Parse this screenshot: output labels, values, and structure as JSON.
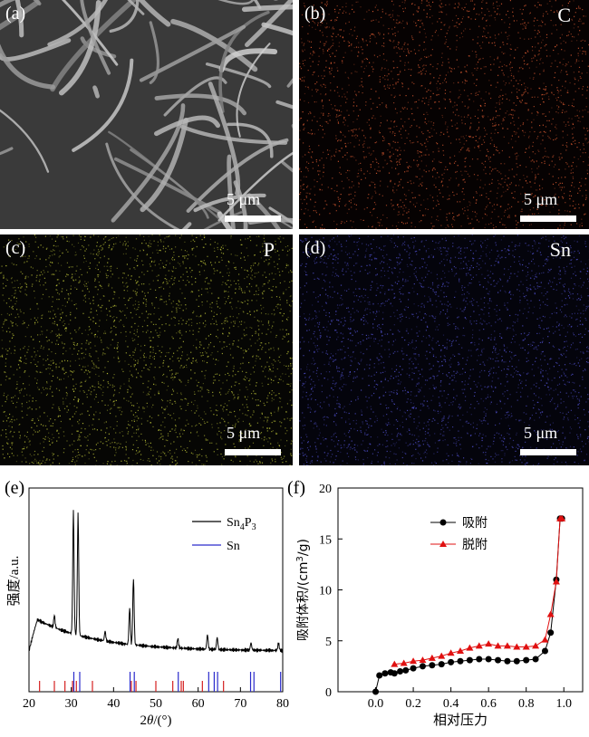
{
  "panels": [
    {
      "label": "(a)",
      "element": "",
      "scale": "5 μm",
      "kind": "sem"
    },
    {
      "label": "(b)",
      "element": "C",
      "scale": "5 μm",
      "kind": "map",
      "dot_color": "#ff6a3a"
    },
    {
      "label": "(c)",
      "element": "P",
      "scale": "5 μm",
      "kind": "map",
      "dot_color": "#d8e040"
    },
    {
      "label": "(d)",
      "element": "Sn",
      "scale": "5 μm",
      "kind": "map",
      "dot_color": "#5a5ae6"
    }
  ],
  "chart_labels": {
    "e": "(e)",
    "f": "(f)"
  },
  "chart_data": [
    {
      "type": "line",
      "ylabel": "强度/a.u.",
      "xlabel_prefix": "2",
      "xlabel_theta": "θ",
      "xlabel_suffix": "/(°)",
      "xlim": [
        20,
        80
      ],
      "xticks": [
        "20",
        "30",
        "40",
        "50",
        "60",
        "70",
        "80"
      ],
      "legend": {
        "sn4p3": {
          "base": "Sn",
          "sub1": "4",
          "mid": "P",
          "sub2": "3"
        },
        "sn": "Sn"
      },
      "colors": {
        "sn4p3": "#000000",
        "sn": "#2b2bcc",
        "sn4p3_ref": "#d42020"
      },
      "peaks": [
        [
          26.0,
          0.1
        ],
        [
          30.5,
          1.0
        ],
        [
          31.6,
          1.0
        ],
        [
          38.0,
          0.08
        ],
        [
          43.8,
          0.3
        ],
        [
          44.7,
          0.55
        ],
        [
          55.2,
          0.08
        ],
        [
          62.2,
          0.12
        ],
        [
          64.5,
          0.1
        ],
        [
          72.5,
          0.06
        ],
        [
          79.0,
          0.06
        ]
      ],
      "ref_sn": [
        30.6,
        32.0,
        43.9,
        44.9,
        55.3,
        62.5,
        63.8,
        64.6,
        72.4,
        73.2,
        79.5
      ],
      "ref_sn4p3": [
        22.5,
        26.0,
        28.5,
        30.3,
        31.2,
        35.0,
        44.2,
        45.3,
        50.0,
        54.0,
        56.0,
        56.5,
        61.0,
        66.0
      ]
    },
    {
      "type": "line",
      "xlabel": "相对压力",
      "ylabel_main": "吸附体积/(cm",
      "ylabel_sup": "3",
      "ylabel_end": "/g)",
      "xlim": [
        -0.2,
        1.1
      ],
      "ylim": [
        0,
        20
      ],
      "xticks": [
        "0.0",
        "0.2",
        "0.4",
        "0.6",
        "0.8",
        "1.0"
      ],
      "yticks": [
        "0",
        "5",
        "10",
        "15",
        "20"
      ],
      "legend": [
        "吸附",
        "脱附"
      ],
      "series": [
        {
          "name": "吸附",
          "color": "#000000",
          "marker": "circle",
          "x": [
            0.0,
            0.02,
            0.05,
            0.08,
            0.1,
            0.13,
            0.16,
            0.2,
            0.25,
            0.3,
            0.35,
            0.4,
            0.45,
            0.5,
            0.55,
            0.6,
            0.65,
            0.7,
            0.75,
            0.8,
            0.85,
            0.9,
            0.93,
            0.96,
            0.98,
            0.99
          ],
          "y": [
            0.0,
            1.6,
            1.8,
            1.9,
            1.8,
            2.0,
            2.1,
            2.3,
            2.5,
            2.6,
            2.7,
            2.9,
            3.0,
            3.1,
            3.2,
            3.2,
            3.1,
            3.0,
            3.0,
            3.1,
            3.2,
            4.0,
            5.8,
            11.0,
            17.0,
            17.0
          ]
        },
        {
          "name": "脱附",
          "color": "#e01010",
          "marker": "triangle",
          "x": [
            0.1,
            0.15,
            0.2,
            0.25,
            0.3,
            0.35,
            0.4,
            0.45,
            0.5,
            0.55,
            0.6,
            0.65,
            0.7,
            0.75,
            0.8,
            0.85,
            0.9,
            0.93,
            0.96,
            0.98,
            0.99
          ],
          "y": [
            2.7,
            2.8,
            3.0,
            3.1,
            3.3,
            3.5,
            3.8,
            4.0,
            4.3,
            4.5,
            4.7,
            4.5,
            4.5,
            4.4,
            4.4,
            4.5,
            5.1,
            7.6,
            10.8,
            17.0,
            17.0
          ]
        }
      ]
    }
  ]
}
